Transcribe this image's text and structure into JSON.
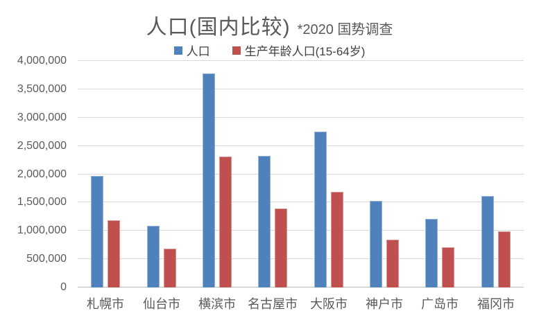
{
  "chart_data": {
    "type": "bar",
    "title": "人口(国内比较)",
    "subtitle": "*2020 国势调查",
    "categories": [
      "札幌市",
      "仙台市",
      "横滨市",
      "名古屋市",
      "大阪市",
      "神户市",
      "广岛市",
      "福冈市"
    ],
    "series": [
      {
        "name": "人口",
        "color": "#4f81bd",
        "border_color": "#95b3d7",
        "values": [
          1970000,
          1090000,
          3780000,
          2330000,
          2750000,
          1530000,
          1210000,
          1610000
        ]
      },
      {
        "name": "生产年龄人口(15-64岁)",
        "color": "#c0504d",
        "border_color": "#d99694",
        "values": [
          1190000,
          680000,
          2310000,
          1400000,
          1690000,
          850000,
          710000,
          990000
        ]
      }
    ],
    "ylim": [
      0,
      4000000
    ],
    "ytick_step": 500000,
    "ytick_labels": [
      "0",
      "500,000",
      "1,000,000",
      "1,500,000",
      "2,000,000",
      "2,500,000",
      "3,000,000",
      "3,500,000",
      "4,000,000"
    ],
    "grid": true,
    "legend_position": "top",
    "colors": {
      "gridline": "#d9d9d9",
      "baseline": "#bfbfbf",
      "title_text": "#595959",
      "axis_text": "#595959",
      "legend_text": "#404040"
    }
  }
}
